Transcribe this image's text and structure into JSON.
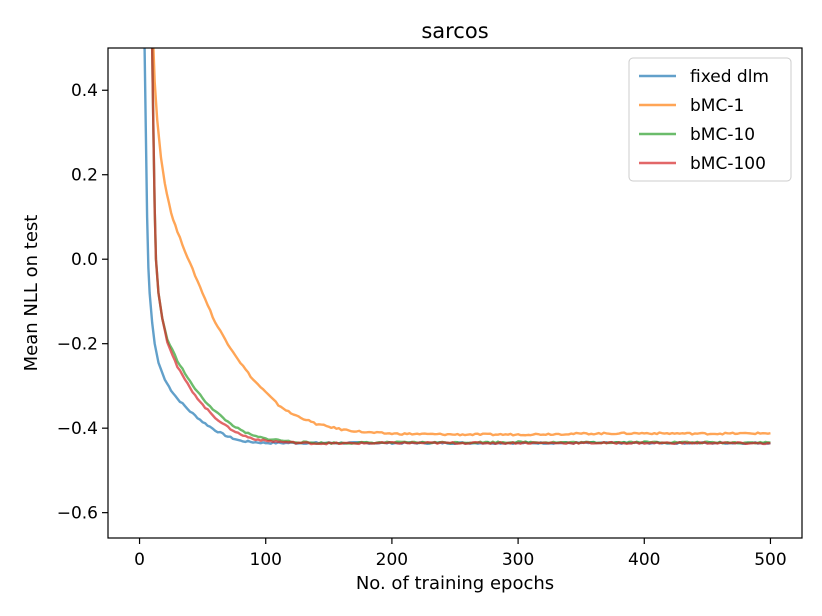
{
  "chart_data": {
    "type": "line",
    "title": "sarcos",
    "xlabel": "No. of training epochs",
    "ylabel": "Mean NLL on test",
    "xlim": [
      -25,
      525
    ],
    "ylim": [
      -0.66,
      0.5
    ],
    "xticks": [
      0,
      100,
      200,
      300,
      400,
      500
    ],
    "yticks": [
      -0.6,
      -0.4,
      -0.2,
      0.0,
      0.2,
      0.4
    ],
    "xtick_labels": [
      "0",
      "100",
      "200",
      "300",
      "400",
      "500"
    ],
    "ytick_labels": [
      "−0.6",
      "−0.4",
      "−0.2",
      "0.0",
      "0.2",
      "0.4"
    ],
    "grid": false,
    "legend_position": "top-right",
    "series": [
      {
        "name": "fixed dlm",
        "color": "#1f77b4",
        "points": [
          [
            4,
            0.5
          ],
          [
            5,
            0.3
          ],
          [
            6,
            0.1
          ],
          [
            7,
            -0.02
          ],
          [
            8,
            -0.08
          ],
          [
            10,
            -0.15
          ],
          [
            12,
            -0.2
          ],
          [
            15,
            -0.245
          ],
          [
            20,
            -0.285
          ],
          [
            25,
            -0.31
          ],
          [
            30,
            -0.33
          ],
          [
            40,
            -0.36
          ],
          [
            50,
            -0.385
          ],
          [
            60,
            -0.405
          ],
          [
            70,
            -0.42
          ],
          [
            80,
            -0.43
          ],
          [
            90,
            -0.433
          ],
          [
            100,
            -0.435
          ],
          [
            120,
            -0.435
          ],
          [
            150,
            -0.435
          ],
          [
            200,
            -0.435
          ],
          [
            250,
            -0.435
          ],
          [
            300,
            -0.435
          ],
          [
            350,
            -0.435
          ],
          [
            400,
            -0.435
          ],
          [
            450,
            -0.435
          ],
          [
            500,
            -0.435
          ]
        ]
      },
      {
        "name": "bMC-1",
        "color": "#ff7f0e",
        "points": [
          [
            11,
            0.5
          ],
          [
            12,
            0.42
          ],
          [
            14,
            0.33
          ],
          [
            17,
            0.24
          ],
          [
            20,
            0.18
          ],
          [
            25,
            0.11
          ],
          [
            30,
            0.065
          ],
          [
            40,
            -0.01
          ],
          [
            50,
            -0.08
          ],
          [
            60,
            -0.15
          ],
          [
            70,
            -0.2
          ],
          [
            80,
            -0.245
          ],
          [
            90,
            -0.285
          ],
          [
            100,
            -0.315
          ],
          [
            110,
            -0.345
          ],
          [
            120,
            -0.365
          ],
          [
            140,
            -0.39
          ],
          [
            160,
            -0.403
          ],
          [
            180,
            -0.41
          ],
          [
            200,
            -0.413
          ],
          [
            250,
            -0.415
          ],
          [
            300,
            -0.415
          ],
          [
            350,
            -0.413
          ],
          [
            400,
            -0.412
          ],
          [
            450,
            -0.413
          ],
          [
            500,
            -0.412
          ]
        ]
      },
      {
        "name": "bMC-10",
        "color": "#2ca02c",
        "points": [
          [
            10,
            0.5
          ],
          [
            11,
            0.3
          ],
          [
            12,
            0.12
          ],
          [
            13,
            0.0
          ],
          [
            15,
            -0.08
          ],
          [
            18,
            -0.14
          ],
          [
            22,
            -0.19
          ],
          [
            30,
            -0.24
          ],
          [
            40,
            -0.29
          ],
          [
            50,
            -0.33
          ],
          [
            60,
            -0.36
          ],
          [
            70,
            -0.385
          ],
          [
            80,
            -0.405
          ],
          [
            90,
            -0.418
          ],
          [
            100,
            -0.425
          ],
          [
            110,
            -0.428
          ],
          [
            120,
            -0.432
          ],
          [
            140,
            -0.435
          ],
          [
            160,
            -0.435
          ],
          [
            200,
            -0.434
          ],
          [
            250,
            -0.434
          ],
          [
            300,
            -0.433
          ],
          [
            350,
            -0.434
          ],
          [
            400,
            -0.433
          ],
          [
            450,
            -0.434
          ],
          [
            500,
            -0.434
          ]
        ]
      },
      {
        "name": "bMC-100",
        "color": "#d62728",
        "points": [
          [
            10,
            0.5
          ],
          [
            11,
            0.3
          ],
          [
            12,
            0.12
          ],
          [
            13,
            0.0
          ],
          [
            15,
            -0.08
          ],
          [
            18,
            -0.14
          ],
          [
            22,
            -0.195
          ],
          [
            30,
            -0.255
          ],
          [
            40,
            -0.305
          ],
          [
            50,
            -0.345
          ],
          [
            60,
            -0.375
          ],
          [
            70,
            -0.398
          ],
          [
            80,
            -0.415
          ],
          [
            90,
            -0.425
          ],
          [
            100,
            -0.43
          ],
          [
            110,
            -0.432
          ],
          [
            120,
            -0.434
          ],
          [
            140,
            -0.436
          ],
          [
            160,
            -0.436
          ],
          [
            200,
            -0.435
          ],
          [
            250,
            -0.435
          ],
          [
            300,
            -0.435
          ],
          [
            350,
            -0.435
          ],
          [
            400,
            -0.435
          ],
          [
            450,
            -0.435
          ],
          [
            500,
            -0.436
          ]
        ]
      }
    ]
  }
}
